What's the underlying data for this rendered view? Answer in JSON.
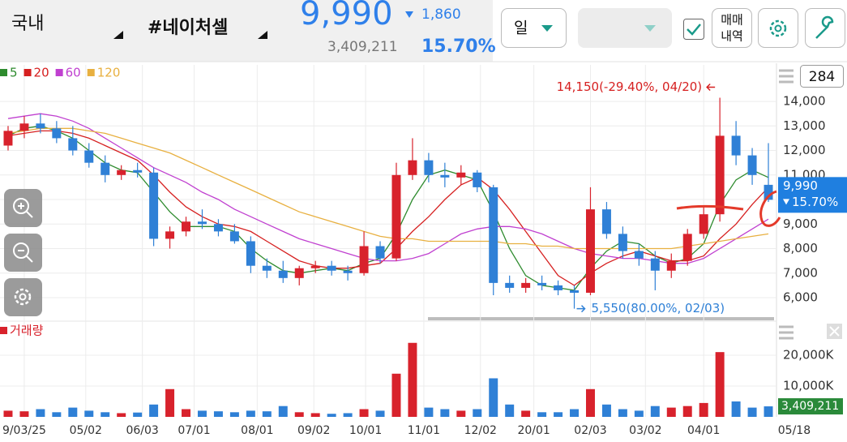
{
  "header": {
    "market": "국내",
    "stock": "#네이처셀",
    "price": "9,990",
    "change": "1,860",
    "volume": "3,409,211",
    "rate": "15.70%",
    "period": "일",
    "trade_history": [
      "매매",
      "내역"
    ]
  },
  "chart_data": {
    "type": "candlestick",
    "count": "284",
    "volume_label": "거래량",
    "candles": [
      [
        12200,
        13000,
        12000,
        12800
      ],
      [
        12800,
        13400,
        12500,
        13100
      ],
      [
        13100,
        13500,
        12700,
        12900
      ],
      [
        12900,
        13200,
        12300,
        12500
      ],
      [
        12500,
        13000,
        11800,
        12000
      ],
      [
        12000,
        12300,
        11300,
        11500
      ],
      [
        11500,
        11800,
        10700,
        11000
      ],
      [
        11000,
        11400,
        10800,
        11200
      ],
      [
        11200,
        11500,
        10900,
        11100
      ],
      [
        11100,
        11300,
        8100,
        8400
      ],
      [
        8400,
        8900,
        8000,
        8700
      ],
      [
        8700,
        9300,
        8500,
        9100
      ],
      [
        9100,
        9600,
        8800,
        9000
      ],
      [
        9000,
        9200,
        8500,
        8700
      ],
      [
        8700,
        9000,
        8200,
        8300
      ],
      [
        8300,
        8500,
        7000,
        7300
      ],
      [
        7300,
        7600,
        6800,
        7100
      ],
      [
        7100,
        7500,
        6600,
        6800
      ],
      [
        6800,
        7300,
        6500,
        7200
      ],
      [
        7200,
        7500,
        7000,
        7300
      ],
      [
        7300,
        7500,
        6900,
        7100
      ],
      [
        7100,
        7300,
        6700,
        7000
      ],
      [
        7000,
        8700,
        6900,
        8100
      ],
      [
        8100,
        8300,
        7400,
        7600
      ],
      [
        7600,
        11500,
        7500,
        11000
      ],
      [
        11000,
        12500,
        10800,
        11600
      ],
      [
        11600,
        11900,
        10700,
        11000
      ],
      [
        11000,
        11500,
        10500,
        10900
      ],
      [
        10900,
        11400,
        10600,
        11100
      ],
      [
        11100,
        11200,
        10300,
        10500
      ],
      [
        10500,
        10600,
        6100,
        6600
      ],
      [
        6600,
        6900,
        6200,
        6400
      ],
      [
        6400,
        6800,
        6200,
        6600
      ],
      [
        6600,
        6900,
        6300,
        6500
      ],
      [
        6500,
        6700,
        6100,
        6300
      ],
      [
        6300,
        6500,
        5550,
        6200
      ],
      [
        6200,
        10500,
        6100,
        9600
      ],
      [
        9600,
        9900,
        8400,
        8600
      ],
      [
        8600,
        8900,
        7600,
        7900
      ],
      [
        7900,
        8200,
        7300,
        7600
      ],
      [
        7600,
        7900,
        6300,
        7100
      ],
      [
        7100,
        7800,
        6800,
        7500
      ],
      [
        7500,
        8800,
        7300,
        8600
      ],
      [
        8600,
        9700,
        8400,
        9400
      ],
      [
        9400,
        14150,
        9100,
        12600
      ],
      [
        12600,
        13200,
        11400,
        11800
      ],
      [
        11800,
        12100,
        10600,
        11000
      ],
      [
        10600,
        12300,
        9900,
        9990
      ]
    ],
    "up_color": "#d8222c",
    "down_color": "#2f80d6",
    "series": [
      {
        "name": "5",
        "color": "#2e8b2e",
        "values": [
          12600,
          12900,
          13000,
          12800,
          12500,
          12000,
          11500,
          11200,
          11100,
          10300,
          9500,
          8900,
          8900,
          8900,
          8700,
          8000,
          7500,
          7100,
          7000,
          7100,
          7200,
          7100,
          7400,
          7600,
          8600,
          10000,
          11000,
          11200,
          11000,
          10800,
          9500,
          8000,
          6900,
          6500,
          6400,
          6300,
          7200,
          7900,
          8300,
          8200,
          7700,
          7400,
          7600,
          8200,
          9800,
          10800,
          11200,
          10900
        ]
      },
      {
        "name": "20",
        "color": "#d62020",
        "values": [
          12600,
          12700,
          12800,
          12800,
          12700,
          12500,
          12200,
          11900,
          11600,
          11000,
          10300,
          9700,
          9300,
          9000,
          8900,
          8700,
          8300,
          7900,
          7500,
          7300,
          7200,
          7200,
          7300,
          7400,
          8000,
          8700,
          9300,
          10000,
          10600,
          10900,
          10400,
          9600,
          8700,
          7800,
          6900,
          6500,
          7000,
          7400,
          7700,
          7900,
          7700,
          7500,
          7500,
          7700,
          8400,
          9000,
          9800,
          10500
        ]
      },
      {
        "name": "60",
        "color": "#c040d0",
        "values": [
          13300,
          13400,
          13500,
          13400,
          13200,
          12900,
          12500,
          12100,
          11700,
          11300,
          11000,
          10700,
          10300,
          10000,
          9600,
          9300,
          9000,
          8700,
          8400,
          8200,
          8000,
          7800,
          7600,
          7500,
          7500,
          7600,
          7800,
          8200,
          8600,
          8800,
          8900,
          8900,
          8800,
          8600,
          8300,
          8000,
          7800,
          7700,
          7600,
          7600,
          7500,
          7400,
          7400,
          7600,
          8000,
          8400,
          8800,
          9200
        ]
      },
      {
        "name": "120",
        "color": "#e8b040",
        "values": [
          12700,
          12800,
          12900,
          12900,
          12900,
          12800,
          12700,
          12500,
          12300,
          12100,
          11900,
          11600,
          11300,
          11000,
          10700,
          10400,
          10100,
          9800,
          9500,
          9300,
          9100,
          8900,
          8700,
          8500,
          8400,
          8400,
          8300,
          8300,
          8300,
          8300,
          8300,
          8200,
          8200,
          8100,
          8100,
          8000,
          8000,
          8000,
          8000,
          8000,
          8000,
          8000,
          8100,
          8200,
          8300,
          8400,
          8500,
          8600
        ]
      }
    ],
    "volumes": [
      2000,
      1800,
      2500,
      1500,
      3000,
      2000,
      1500,
      1200,
      1400,
      4000,
      9000,
      2500,
      2000,
      1800,
      1500,
      2000,
      1800,
      3500,
      1500,
      1200,
      1000,
      1200,
      2500,
      2000,
      14000,
      24000,
      3000,
      2500,
      2000,
      2500,
      12500,
      4000,
      2000,
      1500,
      1500,
      2500,
      9000,
      4000,
      2500,
      2000,
      3500,
      3000,
      3500,
      4500,
      21000,
      5000,
      3000,
      3409
    ],
    "xlim": [
      -0.5,
      47.5
    ],
    "xticks": [
      {
        "value": 1.0,
        "label": "9/03/25"
      },
      {
        "value": 4.8,
        "label": "05/02"
      },
      {
        "value": 8.3,
        "label": "06/03"
      },
      {
        "value": 11.5,
        "label": "07/01"
      },
      {
        "value": 15.4,
        "label": "08/01"
      },
      {
        "value": 18.9,
        "label": "09/02"
      },
      {
        "value": 22.1,
        "label": "10/01"
      },
      {
        "value": 25.7,
        "label": "11/01"
      },
      {
        "value": 29.2,
        "label": "12/02"
      },
      {
        "value": 32.5,
        "label": "20/01"
      },
      {
        "value": 36.0,
        "label": "02/03"
      },
      {
        "value": 39.4,
        "label": "03/02"
      },
      {
        "value": 43.0,
        "label": "04/01"
      },
      {
        "value": 48.6,
        "label": "05/18"
      }
    ],
    "ylim": [
      5240,
      15490
    ],
    "yticks": [
      {
        "value": 6000,
        "label": "6,000"
      },
      {
        "value": 7000,
        "label": "7,000"
      },
      {
        "value": 8000,
        "label": "8,000"
      },
      {
        "value": 9000,
        "label": "9,000"
      },
      {
        "value": 10000,
        "label": "10,000"
      },
      {
        "value": 11000,
        "label": "11,000"
      },
      {
        "value": 12000,
        "label": "12,000"
      },
      {
        "value": 13000,
        "label": "13,000"
      },
      {
        "value": 14000,
        "label": "14,000"
      }
    ],
    "vlim": [
      0,
      31300
    ],
    "vticks": [
      {
        "value": 10000,
        "label": "10,000K"
      },
      {
        "value": 20000,
        "label": "20,000K"
      }
    ],
    "grid": true,
    "high": {
      "value": 14150,
      "index": 44,
      "label": "14,150(-29.40%, 04/20)"
    },
    "low": {
      "value": 5550,
      "index": 35,
      "label": "5,550(80.00%, 02/03)"
    },
    "last_price": {
      "value": 9990,
      "label": "9,990",
      "change": "15.70%"
    },
    "last_volume": {
      "value": 3409,
      "label": "3,409,211"
    }
  }
}
